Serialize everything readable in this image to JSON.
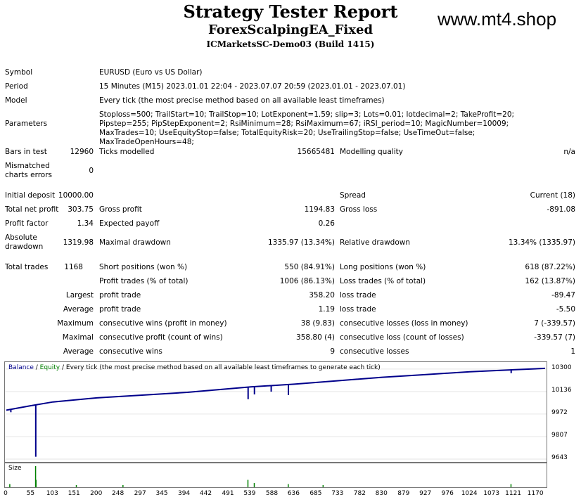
{
  "header": {
    "title": "Strategy Tester Report",
    "ea_name": "ForexScalpingEA_Fixed",
    "server": "ICMarketsSC-Demo03 (Build 1415)",
    "watermark": "www.mt4.shop"
  },
  "info": {
    "symbol_label": "Symbol",
    "symbol_value": "EURUSD (Euro vs US Dollar)",
    "period_label": "Period",
    "period_value": "15 Minutes (M15) 2023.01.01 22:04 - 2023.07.07 20:59 (2023.01.01 - 2023.07.01)",
    "model_label": "Model",
    "model_value": "Every tick (the most precise method based on all available least timeframes)",
    "params_label": "Parameters",
    "params_value": "Stoploss=500; TrailStart=10; TrailStop=10; LotExponent=1.59; slip=3; Lots=0.01; lotdecimal=2; TakeProfit=20; Pipstep=255; PipStepExponent=2; RsiMinimum=28; RsiMaximum=67; iRSI_period=10; MagicNumber=10009; MaxTrades=10; UseEquityStop=false; TotalEquityRisk=20; UseTrailingStop=false; UseTimeOut=false; MaxTradeOpenHours=48;"
  },
  "stats": {
    "bars_label": "Bars in test",
    "bars_value": "12960",
    "ticks_label": "Ticks modelled",
    "ticks_value": "15665481",
    "quality_label": "Modelling quality",
    "quality_value": "n/a",
    "mismatch_label": "Mismatched charts errors",
    "mismatch_value": "0",
    "deposit_label": "Initial deposit",
    "deposit_value": "10000.00",
    "spread_label": "Spread",
    "spread_value": "Current (18)",
    "netprofit_label": "Total net profit",
    "netprofit_value": "303.75",
    "grossprofit_label": "Gross profit",
    "grossprofit_value": "1194.83",
    "grossloss_label": "Gross loss",
    "grossloss_value": "-891.08",
    "pf_label": "Profit factor",
    "pf_value": "1.34",
    "expected_label": "Expected payoff",
    "expected_value": "0.26",
    "absdd_label": "Absolute drawdown",
    "absdd_value": "1319.98",
    "maxdd_label": "Maximal drawdown",
    "maxdd_value": "1335.97 (13.34%)",
    "reldd_label": "Relative drawdown",
    "reldd_value": "13.34% (1335.97)",
    "trades_label": "Total trades",
    "trades_value": "1168",
    "short_label": "Short positions (won %)",
    "short_value": "550 (84.91%)",
    "long_label": "Long positions (won %)",
    "long_value": "618 (87.22%)",
    "ptrades_label": "Profit trades (% of total)",
    "ptrades_value": "1006 (86.13%)",
    "ltrades_label": "Loss trades (% of total)",
    "ltrades_value": "162 (13.87%)",
    "largest_label": "Largest",
    "largest_profit_label": "profit trade",
    "largest_profit_value": "358.20",
    "largest_loss_label": "loss trade",
    "largest_loss_value": "-89.47",
    "average_label": "Average",
    "average_profit_label": "profit trade",
    "average_profit_value": "1.19",
    "average_loss_label": "loss trade",
    "average_loss_value": "-5.50",
    "maximum_label": "Maximum",
    "maxwins_label": "consecutive wins (profit in money)",
    "maxwins_value": "38 (9.83)",
    "maxlosses_label": "consecutive losses (loss in money)",
    "maxlosses_value": "7 (-339.57)",
    "maximal_label": "Maximal",
    "maxprofit_label": "consecutive profit (count of wins)",
    "maxprofit_value": "358.80 (4)",
    "maxloss_label": "consecutive loss (count of losses)",
    "maxloss_value": "-339.57 (7)",
    "average2_label": "Average",
    "avgwins_label": "consecutive wins",
    "avgwins_value": "9",
    "avglosses_label": "consecutive losses",
    "avglosses_value": "1"
  },
  "chart": {
    "legend_balance": "Balance",
    "legend_sep": " / ",
    "legend_equity": "Equity",
    "legend_rest": " / Every tick (the most precise method based on all available least timeframes to generate each tick)",
    "size_label": "Size",
    "balance_color": "#00008b",
    "equity_color": "#008000",
    "size_color": "#008000"
  },
  "chart_data": {
    "type": "line",
    "y_ticks": [
      "10300",
      "10136",
      "9972",
      "9807",
      "9643"
    ],
    "x_ticks": [
      "0",
      "55",
      "103",
      "151",
      "200",
      "248",
      "297",
      "345",
      "394",
      "442",
      "491",
      "539",
      "588",
      "636",
      "685",
      "733",
      "782",
      "830",
      "879",
      "927",
      "976",
      "1024",
      "1073",
      "1121",
      "1170"
    ],
    "ylim": [
      9643,
      10320
    ],
    "xlim": [
      0,
      1190
    ],
    "series": [
      {
        "name": "Balance",
        "x": [
          0,
          50,
          103,
          200,
          300,
          400,
          540,
          636,
          733,
          830,
          927,
          1024,
          1121,
          1190
        ],
        "y": [
          10000,
          10030,
          10060,
          10090,
          10110,
          10130,
          10170,
          10190,
          10215,
          10240,
          10260,
          10280,
          10295,
          10305
        ]
      }
    ],
    "equity_dips": [
      {
        "x": 10,
        "y": 9985
      },
      {
        "x": 65,
        "y": 9660
      },
      {
        "x": 258,
        "y": 10100
      },
      {
        "x": 534,
        "y": 10080
      },
      {
        "x": 548,
        "y": 10115
      },
      {
        "x": 585,
        "y": 10135
      },
      {
        "x": 623,
        "y": 10110
      },
      {
        "x": 1115,
        "y": 10270
      }
    ],
    "size_spikes": [
      {
        "x": 65,
        "v": 1
      },
      {
        "x": 66,
        "v": 0.35
      },
      {
        "x": 8,
        "v": 0.15
      },
      {
        "x": 155,
        "v": 0.1
      },
      {
        "x": 258,
        "v": 0.1
      },
      {
        "x": 534,
        "v": 0.35
      },
      {
        "x": 548,
        "v": 0.2
      },
      {
        "x": 623,
        "v": 0.15
      },
      {
        "x": 700,
        "v": 0.1
      },
      {
        "x": 1115,
        "v": 0.15
      }
    ]
  }
}
